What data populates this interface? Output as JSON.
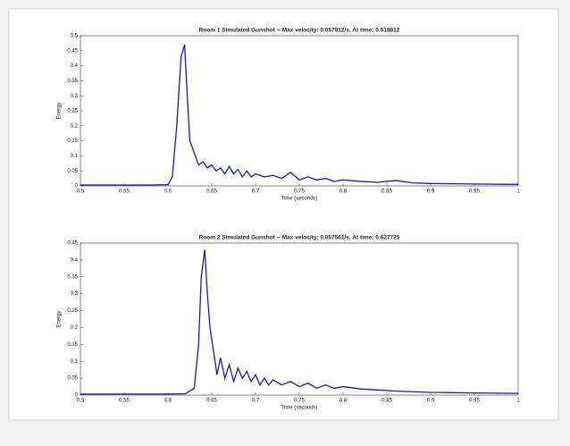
{
  "chart_data": [
    {
      "type": "line",
      "title": "Room 1 Simulated Gunshot -- Max velocity: 0.057912/s, At time: 0.618812",
      "x_label": "Time (seconds)",
      "y_label": "Energy",
      "x": [
        0.5,
        0.55,
        0.58,
        0.6,
        0.605,
        0.61,
        0.615,
        0.619,
        0.622,
        0.625,
        0.63,
        0.635,
        0.64,
        0.645,
        0.65,
        0.655,
        0.66,
        0.665,
        0.67,
        0.675,
        0.68,
        0.685,
        0.69,
        0.695,
        0.7,
        0.71,
        0.72,
        0.73,
        0.74,
        0.75,
        0.76,
        0.77,
        0.78,
        0.79,
        0.8,
        0.82,
        0.84,
        0.86,
        0.88,
        0.9,
        0.93,
        0.96,
        1
      ],
      "series": [
        {
          "color": "#1a1aa8",
          "values": [
            0.003,
            0.003,
            0.003,
            0.004,
            0.03,
            0.2,
            0.43,
            0.47,
            0.3,
            0.15,
            0.11,
            0.07,
            0.08,
            0.06,
            0.07,
            0.05,
            0.06,
            0.04,
            0.065,
            0.04,
            0.055,
            0.03,
            0.05,
            0.03,
            0.04,
            0.03,
            0.035,
            0.025,
            0.045,
            0.02,
            0.03,
            0.02,
            0.025,
            0.015,
            0.02,
            0.015,
            0.012,
            0.018,
            0.01,
            0.008,
            0.007,
            0.006,
            0.005
          ]
        }
      ],
      "xlim": [
        0.5,
        1
      ],
      "xticks": [
        0.5,
        0.55,
        0.6,
        0.65,
        0.7,
        0.75,
        0.8,
        0.85,
        0.9,
        0.95,
        1
      ],
      "ylim": [
        0,
        0.5
      ],
      "yticks": [
        0,
        0.05,
        0.1,
        0.15,
        0.2,
        0.25,
        0.3,
        0.35,
        0.4,
        0.45,
        0.5
      ]
    },
    {
      "type": "line",
      "title": "Room 2 Simulated Gunshot -- Max velocity: 0.057561/s, At time: 0.627725",
      "x_label": "Time (seconds)",
      "y_label": "Energy",
      "x": [
        0.5,
        0.55,
        0.6,
        0.62,
        0.63,
        0.635,
        0.638,
        0.642,
        0.645,
        0.648,
        0.652,
        0.656,
        0.66,
        0.665,
        0.67,
        0.675,
        0.68,
        0.685,
        0.69,
        0.695,
        0.7,
        0.705,
        0.71,
        0.715,
        0.72,
        0.73,
        0.74,
        0.75,
        0.76,
        0.77,
        0.78,
        0.79,
        0.8,
        0.82,
        0.84,
        0.86,
        0.88,
        0.9,
        0.93,
        0.96,
        1
      ],
      "series": [
        {
          "color": "#1a1aa8",
          "values": [
            0.003,
            0.003,
            0.003,
            0.004,
            0.02,
            0.15,
            0.35,
            0.43,
            0.3,
            0.2,
            0.13,
            0.06,
            0.11,
            0.05,
            0.09,
            0.04,
            0.08,
            0.05,
            0.07,
            0.04,
            0.06,
            0.03,
            0.05,
            0.03,
            0.045,
            0.03,
            0.04,
            0.025,
            0.035,
            0.02,
            0.03,
            0.02,
            0.025,
            0.018,
            0.015,
            0.012,
            0.01,
            0.008,
            0.007,
            0.006,
            0.005
          ]
        }
      ],
      "xlim": [
        0.5,
        1
      ],
      "xticks": [
        0.5,
        0.55,
        0.6,
        0.65,
        0.7,
        0.75,
        0.8,
        0.85,
        0.9,
        0.95,
        1
      ],
      "ylim": [
        0,
        0.45
      ],
      "yticks": [
        0,
        0.05,
        0.1,
        0.15,
        0.2,
        0.25,
        0.3,
        0.35,
        0.4,
        0.45
      ]
    }
  ]
}
